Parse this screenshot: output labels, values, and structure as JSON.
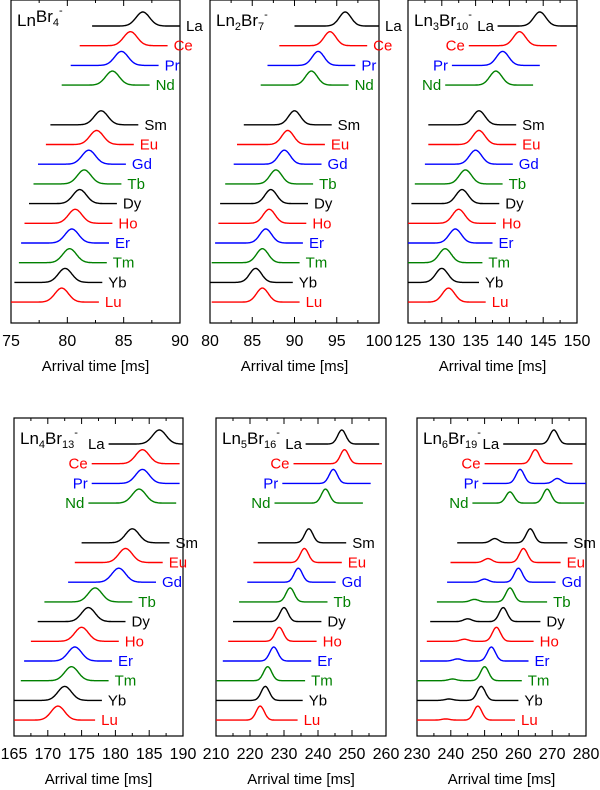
{
  "chart_data": [
    {
      "type": "line",
      "title": {
        "ln": "Ln",
        "ln_sub": "",
        "br": "Br",
        "br_sub": "4",
        "charge": "-"
      },
      "xlabel": "Arrival time [ms]",
      "xlim": [
        75,
        90
      ],
      "xticks": [
        "75",
        "80",
        "85",
        "90"
      ],
      "xtick_values": [
        75,
        80,
        85,
        90
      ],
      "minor_step": 2.5,
      "peak_width_ms": 0.6,
      "top_label_side": "right",
      "series": [
        {
          "name": "La",
          "color": "#000000",
          "peaks": [
            [
              86.7,
              1
            ]
          ]
        },
        {
          "name": "Ce",
          "color": "#ff0000",
          "peaks": [
            [
              85.6,
              1
            ]
          ]
        },
        {
          "name": "Pr",
          "color": "#0000ff",
          "peaks": [
            [
              84.8,
              1
            ]
          ]
        },
        {
          "name": "Nd",
          "color": "#008000",
          "peaks": [
            [
              84.0,
              1
            ]
          ]
        },
        {
          "name": "Sm",
          "color": "#000000",
          "peaks": [
            [
              83.0,
              1
            ]
          ]
        },
        {
          "name": "Eu",
          "color": "#ff0000",
          "peaks": [
            [
              82.6,
              1
            ]
          ]
        },
        {
          "name": "Gd",
          "color": "#0000ff",
          "peaks": [
            [
              81.9,
              1
            ]
          ]
        },
        {
          "name": "Tb",
          "color": "#008000",
          "peaks": [
            [
              81.5,
              1
            ]
          ]
        },
        {
          "name": "Dy",
          "color": "#000000",
          "peaks": [
            [
              81.1,
              1
            ]
          ]
        },
        {
          "name": "Ho",
          "color": "#ff0000",
          "peaks": [
            [
              80.7,
              1
            ]
          ]
        },
        {
          "name": "Er",
          "color": "#0000ff",
          "peaks": [
            [
              80.4,
              1
            ]
          ]
        },
        {
          "name": "Tm",
          "color": "#008000",
          "peaks": [
            [
              80.2,
              1
            ]
          ]
        },
        {
          "name": "Yb",
          "color": "#000000",
          "peaks": [
            [
              79.8,
              1
            ]
          ]
        },
        {
          "name": "Lu",
          "color": "#ff0000",
          "peaks": [
            [
              79.5,
              1
            ]
          ]
        }
      ]
    },
    {
      "type": "line",
      "title": {
        "ln": "Ln",
        "ln_sub": "2",
        "br": "Br",
        "br_sub": "7",
        "charge": "-"
      },
      "xlabel": "Arrival time [ms]",
      "xlim": [
        80,
        100
      ],
      "xticks": [
        "80",
        "85",
        "90",
        "95",
        "100"
      ],
      "xtick_values": [
        80,
        85,
        90,
        95,
        100
      ],
      "minor_step": 2.5,
      "peak_width_ms": 0.7,
      "top_label_side": "right",
      "series": [
        {
          "name": "La",
          "color": "#000000",
          "peaks": [
            [
              96.0,
              1
            ]
          ]
        },
        {
          "name": "Ce",
          "color": "#ff0000",
          "peaks": [
            [
              94.2,
              1
            ]
          ]
        },
        {
          "name": "Pr",
          "color": "#0000ff",
          "peaks": [
            [
              92.8,
              1
            ]
          ]
        },
        {
          "name": "Nd",
          "color": "#008000",
          "peaks": [
            [
              92.0,
              1
            ]
          ]
        },
        {
          "name": "Sm",
          "color": "#000000",
          "peaks": [
            [
              90.0,
              1
            ]
          ]
        },
        {
          "name": "Eu",
          "color": "#ff0000",
          "peaks": [
            [
              89.2,
              1
            ]
          ]
        },
        {
          "name": "Gd",
          "color": "#0000ff",
          "peaks": [
            [
              88.8,
              1
            ]
          ]
        },
        {
          "name": "Tb",
          "color": "#008000",
          "peaks": [
            [
              87.8,
              1
            ]
          ]
        },
        {
          "name": "Dy",
          "color": "#000000",
          "peaks": [
            [
              87.2,
              1
            ]
          ]
        },
        {
          "name": "Ho",
          "color": "#ff0000",
          "peaks": [
            [
              87.0,
              1
            ]
          ]
        },
        {
          "name": "Er",
          "color": "#0000ff",
          "peaks": [
            [
              86.6,
              1
            ]
          ]
        },
        {
          "name": "Tm",
          "color": "#008000",
          "peaks": [
            [
              86.2,
              1
            ]
          ]
        },
        {
          "name": "Yb",
          "color": "#000000",
          "peaks": [
            [
              85.4,
              1
            ]
          ]
        },
        {
          "name": "Lu",
          "color": "#ff0000",
          "peaks": [
            [
              86.2,
              1
            ]
          ]
        }
      ]
    },
    {
      "type": "line",
      "title": {
        "ln": "Ln",
        "ln_sub": "3",
        "br": "Br",
        "br_sub": "10",
        "charge": "-"
      },
      "xlabel": "Arrival time [ms]",
      "xlim": [
        125,
        150
      ],
      "xticks": [
        "125",
        "130",
        "135",
        "140",
        "145",
        "150"
      ],
      "xtick_values": [
        125,
        130,
        135,
        140,
        145,
        150
      ],
      "minor_step": 2.5,
      "peak_width_ms": 0.9,
      "top_label_side": "left",
      "series": [
        {
          "name": "La",
          "color": "#000000",
          "peaks": [
            [
              144.5,
              1
            ]
          ]
        },
        {
          "name": "Ce",
          "color": "#ff0000",
          "peaks": [
            [
              141.5,
              1
            ]
          ]
        },
        {
          "name": "Pr",
          "color": "#0000ff",
          "peaks": [
            [
              139.0,
              1
            ]
          ]
        },
        {
          "name": "Nd",
          "color": "#008000",
          "peaks": [
            [
              138.0,
              1
            ]
          ]
        },
        {
          "name": "Sm",
          "color": "#000000",
          "peaks": [
            [
              135.5,
              1
            ]
          ]
        },
        {
          "name": "Eu",
          "color": "#ff0000",
          "peaks": [
            [
              135.5,
              1
            ]
          ]
        },
        {
          "name": "Gd",
          "color": "#0000ff",
          "peaks": [
            [
              135.0,
              1
            ]
          ]
        },
        {
          "name": "Tb",
          "color": "#008000",
          "peaks": [
            [
              133.5,
              1
            ]
          ]
        },
        {
          "name": "Dy",
          "color": "#000000",
          "peaks": [
            [
              133.0,
              1
            ]
          ]
        },
        {
          "name": "Ho",
          "color": "#ff0000",
          "peaks": [
            [
              132.5,
              1
            ]
          ]
        },
        {
          "name": "Er",
          "color": "#0000ff",
          "peaks": [
            [
              132.0,
              1
            ]
          ]
        },
        {
          "name": "Tm",
          "color": "#008000",
          "peaks": [
            [
              130.5,
              1
            ]
          ]
        },
        {
          "name": "Yb",
          "color": "#000000",
          "peaks": [
            [
              130.0,
              1
            ]
          ]
        },
        {
          "name": "Lu",
          "color": "#ff0000",
          "peaks": [
            [
              131.0,
              1
            ]
          ]
        }
      ]
    },
    {
      "type": "line",
      "title": {
        "ln": "Ln",
        "ln_sub": "4",
        "br": "Br",
        "br_sub": "13",
        "charge": "-"
      },
      "xlabel": "Arrival time [ms]",
      "xlim": [
        165,
        190
      ],
      "xticks": [
        "165",
        "170",
        "175",
        "180",
        "185",
        "190"
      ],
      "xtick_values": [
        165,
        170,
        175,
        180,
        185,
        190
      ],
      "minor_step": 2.5,
      "peak_width_ms": 1.0,
      "top_label_side": "left",
      "series": [
        {
          "name": "La",
          "color": "#000000",
          "peaks": [
            [
              186.5,
              1
            ]
          ]
        },
        {
          "name": "Ce",
          "color": "#ff0000",
          "peaks": [
            [
              184.0,
              1
            ]
          ]
        },
        {
          "name": "Pr",
          "color": "#0000ff",
          "peaks": [
            [
              184.0,
              1
            ]
          ]
        },
        {
          "name": "Nd",
          "color": "#008000",
          "peaks": [
            [
              183.5,
              1
            ]
          ]
        },
        {
          "name": "Sm",
          "color": "#000000",
          "peaks": [
            [
              182.5,
              1
            ]
          ]
        },
        {
          "name": "Eu",
          "color": "#ff0000",
          "peaks": [
            [
              181.5,
              1
            ]
          ]
        },
        {
          "name": "Gd",
          "color": "#0000ff",
          "peaks": [
            [
              180.5,
              1
            ]
          ]
        },
        {
          "name": "Tb",
          "color": "#008000",
          "peaks": [
            [
              177.0,
              1
            ]
          ]
        },
        {
          "name": "Dy",
          "color": "#000000",
          "peaks": [
            [
              176.0,
              1
            ]
          ]
        },
        {
          "name": "Ho",
          "color": "#ff0000",
          "peaks": [
            [
              175.0,
              1
            ]
          ]
        },
        {
          "name": "Er",
          "color": "#0000ff",
          "peaks": [
            [
              174.0,
              1
            ]
          ]
        },
        {
          "name": "Tm",
          "color": "#008000",
          "peaks": [
            [
              173.5,
              1
            ]
          ]
        },
        {
          "name": "Yb",
          "color": "#000000",
          "peaks": [
            [
              172.5,
              1
            ]
          ]
        },
        {
          "name": "Lu",
          "color": "#ff0000",
          "peaks": [
            [
              171.5,
              1
            ]
          ]
        }
      ]
    },
    {
      "type": "line",
      "title": {
        "ln": "Ln",
        "ln_sub": "5",
        "br": "Br",
        "br_sub": "16",
        "charge": "-"
      },
      "xlabel": "Arrival time [ms]",
      "xlim": [
        210,
        260
      ],
      "xticks": [
        "210",
        "220",
        "230",
        "240",
        "250",
        "260"
      ],
      "xtick_values": [
        210,
        220,
        230,
        240,
        250,
        260
      ],
      "minor_step": 5,
      "peak_width_ms": 1.2,
      "top_label_side": "left",
      "series": [
        {
          "name": "La",
          "color": "#000000",
          "peaks": [
            [
              247.0,
              1
            ]
          ]
        },
        {
          "name": "Ce",
          "color": "#ff0000",
          "peaks": [
            [
              247.8,
              1
            ]
          ]
        },
        {
          "name": "Pr",
          "color": "#0000ff",
          "peaks": [
            [
              244.5,
              1
            ]
          ]
        },
        {
          "name": "Nd",
          "color": "#008000",
          "peaks": [
            [
              242.2,
              1
            ]
          ]
        },
        {
          "name": "Sm",
          "color": "#000000",
          "peaks": [
            [
              237.3,
              1
            ]
          ]
        },
        {
          "name": "Eu",
          "color": "#ff0000",
          "peaks": [
            [
              236.0,
              1
            ]
          ]
        },
        {
          "name": "Gd",
          "color": "#0000ff",
          "peaks": [
            [
              234.2,
              1
            ]
          ]
        },
        {
          "name": "Tb",
          "color": "#008000",
          "peaks": [
            [
              231.8,
              1
            ]
          ]
        },
        {
          "name": "Dy",
          "color": "#000000",
          "peaks": [
            [
              230.0,
              1
            ]
          ]
        },
        {
          "name": "Ho",
          "color": "#ff0000",
          "peaks": [
            [
              228.6,
              1
            ]
          ]
        },
        {
          "name": "Er",
          "color": "#0000ff",
          "peaks": [
            [
              227.0,
              1
            ]
          ]
        },
        {
          "name": "Tm",
          "color": "#008000",
          "peaks": [
            [
              225.2,
              1
            ]
          ]
        },
        {
          "name": "Yb",
          "color": "#000000",
          "peaks": [
            [
              224.5,
              1
            ]
          ]
        },
        {
          "name": "Lu",
          "color": "#ff0000",
          "peaks": [
            [
              223.0,
              1
            ]
          ]
        }
      ]
    },
    {
      "type": "line",
      "title": {
        "ln": "Ln",
        "ln_sub": "6",
        "br": "Br",
        "br_sub": "19",
        "charge": "-"
      },
      "xlabel": "Arrival time [ms]",
      "xlim": [
        230,
        280
      ],
      "xticks": [
        "230",
        "240",
        "250",
        "260",
        "270",
        "280"
      ],
      "xtick_values": [
        230,
        240,
        250,
        260,
        270,
        280
      ],
      "minor_step": 5,
      "peak_width_ms": 1.2,
      "top_label_side": "left",
      "series": [
        {
          "name": "La",
          "color": "#000000",
          "peaks": [
            [
              270.5,
              1
            ]
          ]
        },
        {
          "name": "Ce",
          "color": "#ff0000",
          "peaks": [
            [
              265.0,
              1
            ]
          ]
        },
        {
          "name": "Pr",
          "color": "#0000ff",
          "peaks": [
            [
              260.5,
              1
            ],
            [
              271.5,
              0.35
            ]
          ]
        },
        {
          "name": "Nd",
          "color": "#008000",
          "peaks": [
            [
              257.5,
              0.8
            ],
            [
              268.5,
              1
            ]
          ]
        },
        {
          "name": "Sm",
          "color": "#000000",
          "peaks": [
            [
              253.0,
              0.3
            ],
            [
              263.5,
              1
            ]
          ]
        },
        {
          "name": "Eu",
          "color": "#ff0000",
          "peaks": [
            [
              251.0,
              0.28
            ],
            [
              261.5,
              1
            ]
          ]
        },
        {
          "name": "Gd",
          "color": "#0000ff",
          "peaks": [
            [
              250.0,
              0.22
            ],
            [
              260.0,
              1
            ]
          ]
        },
        {
          "name": "Tb",
          "color": "#008000",
          "peaks": [
            [
              247.0,
              0.18
            ],
            [
              257.5,
              1
            ]
          ]
        },
        {
          "name": "Dy",
          "color": "#000000",
          "peaks": [
            [
              245.0,
              0.2
            ],
            [
              255.5,
              1
            ]
          ]
        },
        {
          "name": "Ho",
          "color": "#ff0000",
          "peaks": [
            [
              244.0,
              0.15
            ],
            [
              253.5,
              1
            ]
          ]
        },
        {
          "name": "Er",
          "color": "#0000ff",
          "peaks": [
            [
              242.0,
              0.15
            ],
            [
              252.0,
              1
            ]
          ]
        },
        {
          "name": "Tm",
          "color": "#008000",
          "peaks": [
            [
              240.5,
              0.12
            ],
            [
              250.0,
              1
            ]
          ]
        },
        {
          "name": "Yb",
          "color": "#000000",
          "peaks": [
            [
              239.5,
              0.1
            ],
            [
              249.0,
              1
            ]
          ]
        },
        {
          "name": "Lu",
          "color": "#ff0000",
          "peaks": [
            [
              238.5,
              0.08
            ],
            [
              248.0,
              1
            ]
          ]
        }
      ]
    }
  ]
}
